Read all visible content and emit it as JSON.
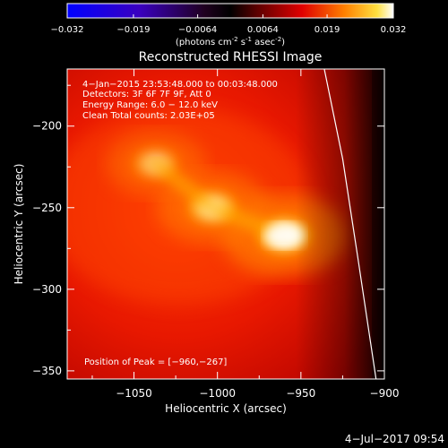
{
  "colorbar": {
    "ticks": [
      "-0.032",
      "-0.019",
      "-0.0064",
      "0.0064",
      "0.019",
      "0.032"
    ],
    "units_main": "(photons cm",
    "units_sup1": "-2",
    "units_mid1": " s",
    "units_sup2": "-1",
    "units_mid2": " asec",
    "units_sup3": "-2",
    "units_end": ")"
  },
  "chart_data": {
    "type": "heatmap",
    "title": "Reconstructed RHESSI Image",
    "xlabel": "Heliocentric X (arcsec)",
    "ylabel": "Heliocentric Y (arcsec)",
    "xlim": [
      -1090,
      -900
    ],
    "ylim": [
      -355,
      -165
    ],
    "x_ticks": [
      -1050,
      -1000,
      -950,
      -900
    ],
    "x_tick_labels": [
      "−1050",
      "−1000",
      "−950",
      "−900"
    ],
    "y_ticks": [
      -200,
      -250,
      -300,
      -350
    ],
    "y_tick_labels": [
      "−200",
      "−250",
      "−300",
      "−350"
    ],
    "colorscale_range": [
      -0.032,
      0.032
    ],
    "sources": [
      {
        "x": -960,
        "y": -267,
        "relative_intensity": 1.0
      },
      {
        "x": -1003,
        "y": -250,
        "relative_intensity": 0.75
      },
      {
        "x": -1037,
        "y": -223,
        "relative_intensity": 0.55
      }
    ],
    "peak": [
      -960,
      -267
    ],
    "limb": [
      [
        -936,
        -165
      ],
      [
        -925,
        -220
      ],
      [
        -916,
        -280
      ],
      [
        -905,
        -355
      ]
    ],
    "annotations": [
      "4−Jan−2015 23:53:48.000 to 00:03:48.000",
      "Detectors: 3F 6F 7F 9F, Att 0",
      "Energy Range: 6.0 − 12.0 keV",
      "Clean    Total counts: 2.03E+05",
      "Position of Peak = [−960,−267]"
    ]
  },
  "footer": {
    "timestamp": "4−Jul−2017 09:54"
  }
}
